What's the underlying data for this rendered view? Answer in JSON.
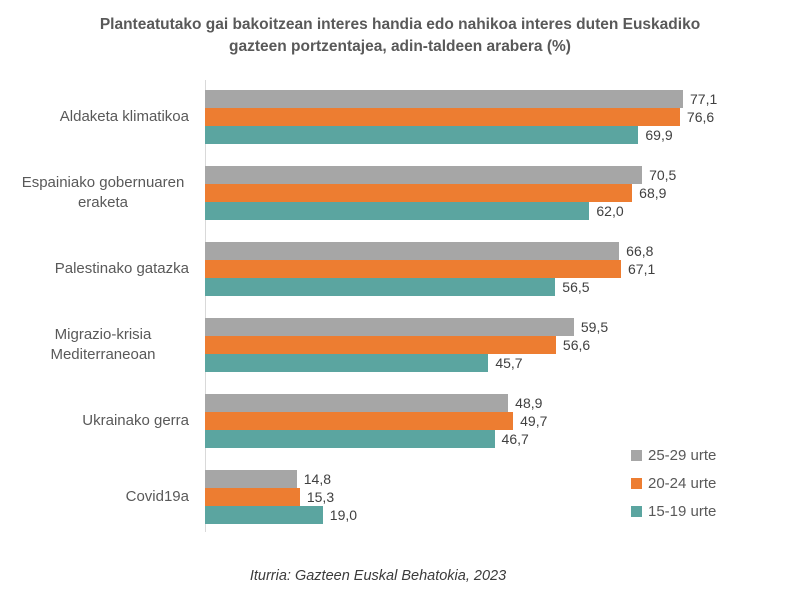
{
  "title": "Planteatutako gai bakoitzean interes handia edo nahikoa interes duten Euskadiko gazteen portzentajea, adin-taldeen arabera (%)",
  "source": "Iturria: Gazteen Euskal Behatokia, 2023",
  "chart_data": {
    "type": "bar",
    "orientation": "horizontal",
    "title": "Planteatutako gai bakoitzean interes handia edo nahikoa interes duten Euskadiko gazteen portzentajea, adin-taldeen arabera (%)",
    "categories": [
      "Aldaketa klimatikoa",
      "Espainiako gobernuaren eraketa",
      "Palestinako gatazka",
      "Migrazio-krisia Mediterraneoan",
      "Ukrainako gerra",
      "Covid19a"
    ],
    "series": [
      {
        "name": "25-29 urte",
        "color": "#a6a6a6",
        "values": [
          77.1,
          70.5,
          66.8,
          59.5,
          48.9,
          14.8
        ],
        "labels": [
          "77,1",
          "70,5",
          "66,8",
          "59,5",
          "48,9",
          "14,8"
        ]
      },
      {
        "name": "20-24 urte",
        "color": "#ed7d31",
        "values": [
          76.6,
          68.9,
          67.1,
          56.6,
          49.7,
          15.3
        ],
        "labels": [
          "76,6",
          "68,9",
          "67,1",
          "56,6",
          "49,7",
          "15,3"
        ]
      },
      {
        "name": "15-19 urte",
        "color": "#5ba5a0",
        "values": [
          69.9,
          62.0,
          56.5,
          45.7,
          46.7,
          19.0
        ],
        "labels": [
          "69,9",
          "62,0",
          "56,5",
          "45,7",
          "46,7",
          "19,0"
        ]
      }
    ],
    "xlim": [
      0,
      100
    ],
    "grid": false,
    "legend_position": "right-bottom",
    "value_labels_shown": true,
    "decimal_separator": ","
  }
}
